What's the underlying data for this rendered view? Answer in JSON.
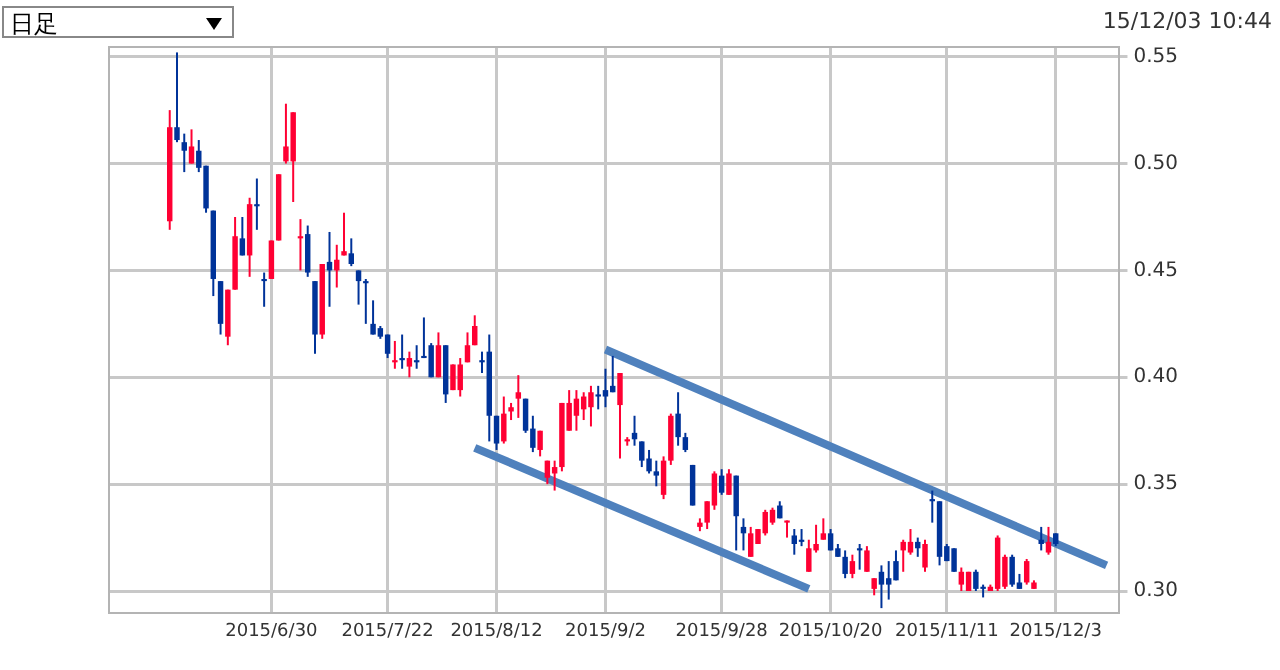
{
  "chart_data": {
    "type": "candlestick",
    "annotations": [
      "日足",
      "15/12/03 10:44"
    ],
    "categories": [
      null,
      null,
      null,
      null,
      null,
      null,
      null,
      null,
      null,
      null,
      null,
      null,
      null,
      null,
      null,
      null,
      null,
      null,
      null,
      null,
      null,
      null,
      "2015/6/30",
      null,
      null,
      null,
      null,
      null,
      null,
      null,
      null,
      null,
      null,
      null,
      null,
      null,
      null,
      null,
      "2015/7/22",
      null,
      null,
      null,
      null,
      null,
      null,
      null,
      null,
      null,
      null,
      null,
      null,
      null,
      null,
      "2015/8/12",
      null,
      null,
      null,
      null,
      null,
      null,
      null,
      null,
      null,
      null,
      null,
      null,
      null,
      null,
      "2015/9/2",
      null,
      null,
      null,
      null,
      null,
      null,
      null,
      null,
      null,
      null,
      null,
      null,
      null,
      null,
      null,
      "2015/9/28",
      null,
      null,
      null,
      null,
      null,
      null,
      null,
      null,
      null,
      null,
      null,
      null,
      null,
      null,
      "2015/10/20",
      null,
      null,
      null,
      null,
      null,
      null,
      null,
      null,
      null,
      null,
      null,
      null,
      null,
      null,
      null,
      "2015/11/11",
      null,
      null,
      null,
      null,
      null,
      null,
      null,
      null,
      null,
      null,
      null,
      null,
      null,
      null,
      "2015/12/3",
      null,
      null,
      null,
      null,
      null,
      null,
      null,
      null
    ],
    "ohlc": [
      null,
      null,
      null,
      null,
      null,
      null,
      null,
      null,
      [
        0.473,
        0.525,
        0.469,
        0.517
      ],
      [
        0.517,
        0.552,
        0.51,
        0.511
      ],
      [
        0.51,
        0.514,
        0.496,
        0.506
      ],
      [
        0.5,
        0.516,
        0.5,
        0.508
      ],
      [
        0.506,
        0.511,
        0.496,
        0.498
      ],
      [
        0.499,
        0.499,
        0.477,
        0.479
      ],
      [
        0.478,
        0.478,
        0.438,
        0.446
      ],
      [
        0.445,
        0.445,
        0.42,
        0.425
      ],
      [
        0.419,
        0.441,
        0.415,
        0.441
      ],
      [
        0.441,
        0.475,
        0.441,
        0.466
      ],
      [
        0.465,
        0.475,
        0.457,
        0.457
      ],
      [
        0.457,
        0.484,
        0.447,
        0.481
      ],
      [
        0.481,
        0.493,
        0.469,
        0.48
      ],
      [
        0.446,
        0.449,
        0.433,
        0.445
      ],
      [
        0.446,
        0.464,
        0.446,
        0.464
      ],
      [
        0.464,
        0.495,
        0.464,
        0.495
      ],
      [
        0.501,
        0.528,
        0.5,
        0.508
      ],
      [
        0.501,
        0.524,
        0.482,
        0.524
      ],
      [
        0.465,
        0.474,
        0.45,
        0.466
      ],
      [
        0.467,
        0.471,
        0.447,
        0.449
      ],
      [
        0.445,
        0.445,
        0.411,
        0.42
      ],
      [
        0.42,
        0.453,
        0.418,
        0.453
      ],
      [
        0.454,
        0.468,
        0.433,
        0.45
      ],
      [
        0.45,
        0.462,
        0.442,
        0.455
      ],
      [
        0.457,
        0.477,
        0.457,
        0.459
      ],
      [
        0.458,
        0.465,
        0.452,
        0.453
      ],
      [
        0.45,
        0.45,
        0.434,
        0.445
      ],
      [
        0.445,
        0.446,
        0.425,
        0.444
      ],
      [
        0.425,
        0.436,
        0.42,
        0.42
      ],
      [
        0.423,
        0.424,
        0.418,
        0.419
      ],
      [
        0.42,
        0.42,
        0.409,
        0.411
      ],
      [
        0.407,
        0.417,
        0.404,
        0.408
      ],
      [
        0.409,
        0.42,
        0.404,
        0.408
      ],
      [
        0.405,
        0.412,
        0.4,
        0.409
      ],
      [
        0.408,
        0.415,
        0.404,
        0.407
      ],
      [
        0.41,
        0.428,
        0.409,
        0.409
      ],
      [
        0.415,
        0.416,
        0.4,
        0.4
      ],
      [
        0.4,
        0.421,
        0.4,
        0.415
      ],
      [
        0.415,
        0.415,
        0.388,
        0.392
      ],
      [
        0.394,
        0.406,
        0.394,
        0.406
      ],
      [
        0.394,
        0.409,
        0.391,
        0.406
      ],
      [
        0.407,
        0.421,
        0.407,
        0.415
      ],
      [
        0.415,
        0.429,
        0.415,
        0.424
      ],
      [
        0.408,
        0.412,
        0.402,
        0.407
      ],
      [
        0.412,
        0.42,
        0.37,
        0.382
      ],
      [
        0.382,
        0.382,
        0.366,
        0.369
      ],
      [
        0.37,
        0.391,
        0.369,
        0.383
      ],
      [
        0.384,
        0.388,
        0.38,
        0.386
      ],
      [
        0.39,
        0.401,
        0.381,
        0.393
      ],
      [
        0.39,
        0.39,
        0.374,
        0.375
      ],
      [
        0.376,
        0.382,
        0.365,
        0.367
      ],
      [
        0.366,
        0.375,
        0.363,
        0.375
      ],
      [
        0.353,
        0.361,
        0.35,
        0.361
      ],
      [
        0.355,
        0.361,
        0.347,
        0.358
      ],
      [
        0.358,
        0.388,
        0.356,
        0.388
      ],
      [
        0.375,
        0.394,
        0.375,
        0.388
      ],
      [
        0.382,
        0.394,
        0.375,
        0.39
      ],
      [
        0.385,
        0.393,
        0.38,
        0.391
      ],
      [
        0.386,
        0.396,
        0.377,
        0.393
      ],
      [
        0.392,
        0.396,
        0.385,
        0.391
      ],
      [
        0.394,
        0.404,
        0.386,
        0.391
      ],
      [
        0.396,
        0.41,
        0.393,
        0.393
      ],
      [
        0.387,
        0.402,
        0.362,
        0.402
      ],
      [
        0.37,
        0.372,
        0.368,
        0.371
      ],
      [
        0.374,
        0.382,
        0.368,
        0.371
      ],
      [
        0.37,
        0.37,
        0.358,
        0.361
      ],
      [
        0.362,
        0.366,
        0.355,
        0.356
      ],
      [
        0.356,
        0.361,
        0.349,
        0.354
      ],
      [
        0.345,
        0.363,
        0.343,
        0.361
      ],
      [
        0.361,
        0.383,
        0.359,
        0.382
      ],
      [
        0.383,
        0.393,
        0.368,
        0.372
      ],
      [
        0.372,
        0.374,
        0.365,
        0.366
      ],
      [
        0.359,
        0.359,
        0.34,
        0.34
      ],
      [
        0.33,
        0.334,
        0.328,
        0.332
      ],
      [
        0.332,
        0.342,
        0.329,
        0.342
      ],
      [
        0.34,
        0.356,
        0.338,
        0.355
      ],
      [
        0.354,
        0.357,
        0.345,
        0.346
      ],
      [
        0.345,
        0.357,
        0.345,
        0.355
      ],
      [
        0.354,
        0.354,
        0.319,
        0.335
      ],
      [
        0.33,
        0.334,
        0.319,
        0.327
      ],
      [
        0.316,
        0.33,
        0.316,
        0.327
      ],
      [
        0.322,
        0.329,
        0.322,
        0.329
      ],
      [
        0.327,
        0.338,
        0.326,
        0.337
      ],
      [
        0.332,
        0.339,
        0.331,
        0.338
      ],
      [
        0.34,
        0.342,
        0.334,
        0.334
      ],
      [
        0.332,
        0.333,
        0.325,
        0.333
      ],
      [
        0.326,
        0.329,
        0.317,
        0.322
      ],
      [
        0.324,
        0.329,
        0.321,
        0.323
      ],
      [
        0.309,
        0.324,
        0.309,
        0.32
      ],
      [
        0.319,
        0.331,
        0.318,
        0.322
      ],
      [
        0.324,
        0.334,
        0.324,
        0.327
      ],
      [
        0.327,
        0.329,
        0.319,
        0.319
      ],
      [
        0.32,
        0.322,
        0.316,
        0.316
      ],
      [
        0.316,
        0.319,
        0.306,
        0.308
      ],
      [
        0.308,
        0.317,
        0.306,
        0.314
      ],
      [
        0.32,
        0.322,
        0.31,
        0.319
      ],
      [
        0.309,
        0.321,
        0.309,
        0.319
      ],
      [
        0.301,
        0.306,
        0.298,
        0.306
      ],
      [
        0.309,
        0.312,
        0.292,
        0.303
      ],
      [
        0.306,
        0.314,
        0.296,
        0.303
      ],
      [
        0.314,
        0.319,
        0.305,
        0.305
      ],
      [
        0.319,
        0.324,
        0.309,
        0.323
      ],
      [
        0.318,
        0.329,
        0.317,
        0.323
      ],
      [
        0.323,
        0.325,
        0.316,
        0.32
      ],
      [
        0.311,
        0.324,
        0.309,
        0.322
      ],
      [
        0.343,
        0.347,
        0.332,
        0.342
      ],
      [
        0.342,
        0.342,
        0.312,
        0.316
      ],
      [
        0.321,
        0.322,
        0.314,
        0.314
      ],
      [
        0.32,
        0.32,
        0.309,
        0.309
      ],
      [
        0.303,
        0.311,
        0.3,
        0.309
      ],
      [
        0.3,
        0.309,
        0.3,
        0.309
      ],
      [
        0.309,
        0.31,
        0.3,
        0.301
      ],
      [
        0.302,
        0.303,
        0.297,
        0.301
      ],
      [
        0.3,
        0.303,
        0.3,
        0.302
      ],
      [
        0.301,
        0.326,
        0.3,
        0.325
      ],
      [
        0.302,
        0.317,
        0.301,
        0.316
      ],
      [
        0.316,
        0.317,
        0.302,
        0.303
      ],
      [
        0.304,
        0.308,
        0.301,
        0.301
      ],
      [
        0.304,
        0.315,
        0.303,
        0.314
      ],
      [
        0.301,
        0.305,
        0.301,
        0.304
      ],
      [
        0.324,
        0.33,
        0.319,
        0.322
      ],
      [
        0.318,
        0.33,
        0.317,
        0.323
      ],
      [
        0.327,
        0.327,
        0.321,
        0.322
      ],
      null,
      null,
      null,
      null,
      null,
      null,
      null,
      null
    ],
    "series": [
      {
        "type": "line",
        "color": "#4f81bd",
        "values": [
          null,
          null,
          null,
          null,
          null,
          null,
          null,
          null,
          null,
          null,
          null,
          null,
          null,
          null,
          null,
          null,
          null,
          null,
          null,
          null,
          null,
          null,
          null,
          null,
          null,
          null,
          null,
          null,
          null,
          null,
          null,
          null,
          null,
          null,
          null,
          null,
          null,
          null,
          null,
          null,
          null,
          null,
          null,
          null,
          null,
          null,
          null,
          null,
          null,
          null,
          null,
          null,
          null,
          null,
          null,
          null,
          null,
          null,
          null,
          null,
          null,
          null,
          null,
          null,
          null,
          null,
          null,
          null,
          0.413,
          null,
          null,
          null,
          null,
          null,
          null,
          null,
          null,
          null,
          null,
          null,
          null,
          null,
          null,
          null,
          null,
          null,
          null,
          null,
          null,
          null,
          null,
          null,
          null,
          null,
          null,
          null,
          null,
          null,
          null,
          null,
          null,
          null,
          null,
          null,
          null,
          null,
          null,
          null,
          null,
          null,
          null,
          null,
          null,
          null,
          null,
          null,
          null,
          null,
          null,
          null,
          null,
          null,
          null,
          null,
          null,
          null,
          null,
          null,
          null,
          null,
          null,
          null,
          null,
          null,
          null,
          null,
          null,
          0.312,
          null
        ]
      },
      {
        "type": "line",
        "color": "#4f81bd",
        "values": [
          null,
          null,
          null,
          null,
          null,
          null,
          null,
          null,
          null,
          null,
          null,
          null,
          null,
          null,
          null,
          null,
          null,
          null,
          null,
          null,
          null,
          null,
          null,
          null,
          null,
          null,
          null,
          null,
          null,
          null,
          null,
          null,
          null,
          null,
          null,
          null,
          null,
          null,
          null,
          null,
          null,
          null,
          null,
          null,
          null,
          null,
          null,
          null,
          null,
          null,
          0.367,
          null,
          null,
          null,
          null,
          null,
          null,
          null,
          null,
          null,
          null,
          null,
          null,
          null,
          null,
          null,
          null,
          null,
          null,
          null,
          null,
          null,
          null,
          null,
          null,
          null,
          null,
          null,
          null,
          null,
          null,
          null,
          null,
          null,
          null,
          null,
          null,
          null,
          null,
          null,
          null,
          null,
          null,
          null,
          null,
          null,
          0.301,
          null,
          null,
          null,
          null,
          null,
          null,
          null,
          null,
          null,
          null,
          null,
          null,
          null,
          null,
          null,
          null,
          null,
          null,
          null,
          null,
          null,
          null,
          null,
          null,
          null,
          null,
          null,
          null,
          null,
          null,
          null,
          null,
          null,
          null,
          null,
          null,
          null,
          null,
          null,
          null,
          null,
          null
        ]
      }
    ],
    "ylim": [
      0.29,
      0.555
    ],
    "yticks": [
      {
        "value": 0.3,
        "label": "0.30"
      },
      {
        "value": 0.35,
        "label": "0.35"
      },
      {
        "value": 0.4,
        "label": "0.40"
      },
      {
        "value": 0.45,
        "label": "0.45"
      },
      {
        "value": 0.5,
        "label": "0.50"
      },
      {
        "value": 0.55,
        "label": "0.55"
      }
    ],
    "grid": true
  }
}
